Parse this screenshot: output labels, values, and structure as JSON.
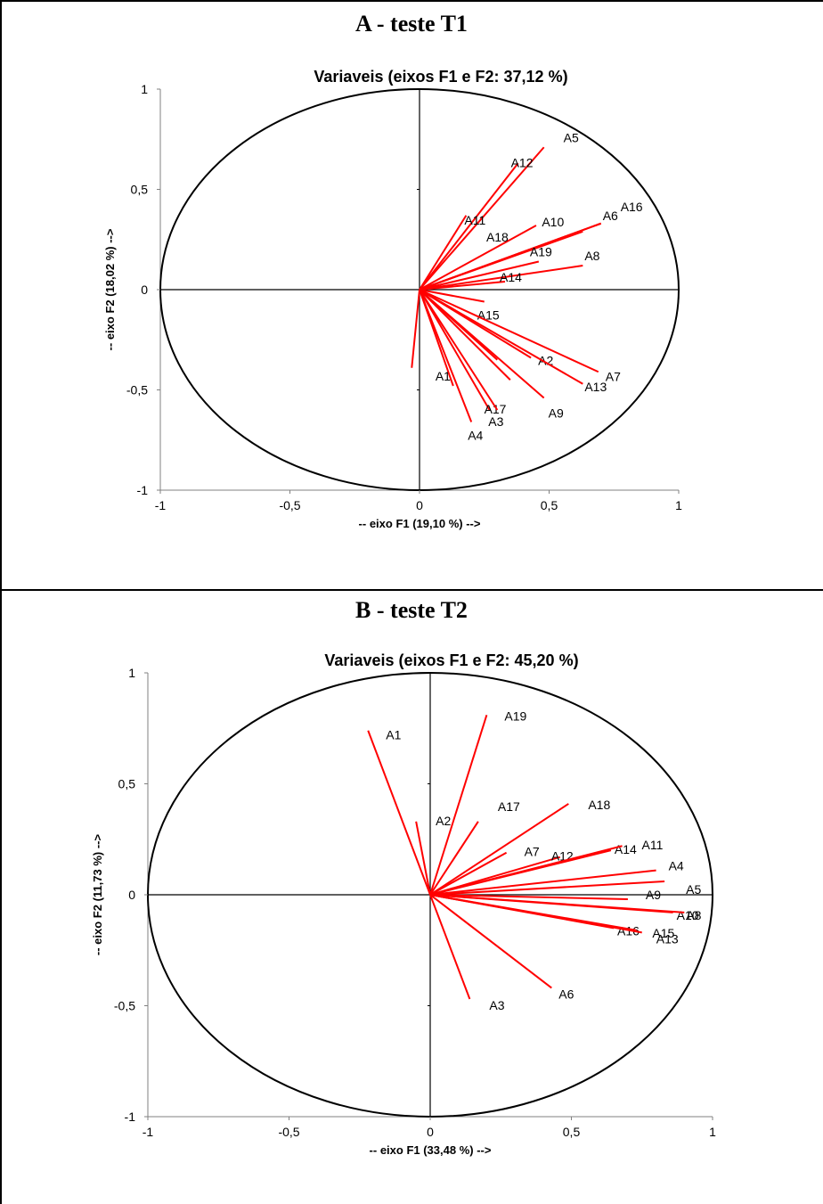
{
  "panels": [
    {
      "heading": "A - teste T1",
      "chart_data": {
        "type": "scatter",
        "title": "Variaveis (eixos F1 e F2: 37,12 %)",
        "xlabel": "-- eixo F1 (19,10 %) -->",
        "ylabel": "-- eixo F2 (18,02 %) -->",
        "xlim": [
          -1,
          1
        ],
        "ylim": [
          -1,
          1
        ],
        "x_ticks": [
          "-1",
          "-0,5",
          "0",
          "0,5",
          "1"
        ],
        "y_ticks": [
          "1",
          "0,5",
          "0",
          "-0,5",
          "-1"
        ],
        "grid": false,
        "legend": "none",
        "line_color": "#ff0000",
        "variables": [
          {
            "label": "A5",
            "x": 0.48,
            "y": 0.71
          },
          {
            "label": "A12",
            "x": 0.38,
            "y": 0.63
          },
          {
            "label": "A11",
            "x": 0.18,
            "y": 0.37
          },
          {
            "label": "A18",
            "x": 0.45,
            "y": 0.32
          },
          {
            "label": "A10",
            "x": 0.63,
            "y": 0.29
          },
          {
            "label": "A6",
            "x": 0.7,
            "y": 0.33
          },
          {
            "label": "A16",
            "x": 0.7,
            "y": 0.33
          },
          {
            "label": "A19",
            "x": 0.46,
            "y": 0.14
          },
          {
            "label": "A8",
            "x": 0.63,
            "y": 0.12
          },
          {
            "label": "A14",
            "x": 0.33,
            "y": 0.04
          },
          {
            "label": "A15",
            "x": 0.25,
            "y": -0.06
          },
          {
            "label": "A2",
            "x": 0.43,
            "y": -0.34
          },
          {
            "label": "A7",
            "x": 0.69,
            "y": -0.41
          },
          {
            "label": "A13",
            "x": 0.63,
            "y": -0.47
          },
          {
            "label": "A1",
            "x": 0.13,
            "y": -0.48
          },
          {
            "label": "A17",
            "x": 0.27,
            "y": -0.6
          },
          {
            "label": "A9",
            "x": 0.48,
            "y": -0.54
          },
          {
            "label": "A3",
            "x": 0.3,
            "y": -0.6
          },
          {
            "label": "A4",
            "x": 0.2,
            "y": -0.66
          },
          {
            "label": "",
            "x": -0.03,
            "y": -0.39
          },
          {
            "label": "",
            "x": 0.3,
            "y": -0.35
          },
          {
            "label": "",
            "x": 0.35,
            "y": -0.45
          }
        ]
      }
    },
    {
      "heading": "B - teste T2",
      "chart_data": {
        "type": "scatter",
        "title": "Variaveis (eixos F1 e F2: 45,20 %)",
        "xlabel": "-- eixo F1 (33,48 %) -->",
        "ylabel": "-- eixo F2 (11,73 %) -->",
        "xlim": [
          -1,
          1
        ],
        "ylim": [
          -1,
          1
        ],
        "x_ticks": [
          "-1",
          "-0,5",
          "0",
          "0,5",
          "1"
        ],
        "y_ticks": [
          "1",
          "0,5",
          "0",
          "-0,5",
          "-1"
        ],
        "grid": false,
        "legend": "none",
        "line_color": "#ff0000",
        "variables": [
          {
            "label": "A1",
            "x": -0.22,
            "y": 0.74
          },
          {
            "label": "A19",
            "x": 0.2,
            "y": 0.81
          },
          {
            "label": "A18",
            "x": 0.49,
            "y": 0.41
          },
          {
            "label": "A2",
            "x": -0.05,
            "y": 0.33
          },
          {
            "label": "A17",
            "x": 0.17,
            "y": 0.33
          },
          {
            "label": "A7",
            "x": 0.27,
            "y": 0.19
          },
          {
            "label": "A12",
            "x": 0.46,
            "y": 0.17
          },
          {
            "label": "A14",
            "x": 0.64,
            "y": 0.2
          },
          {
            "label": "A11",
            "x": 0.68,
            "y": 0.22
          },
          {
            "label": "A4",
            "x": 0.8,
            "y": 0.11
          },
          {
            "label": "A5",
            "x": 0.83,
            "y": 0.06
          },
          {
            "label": "A9",
            "x": 0.7,
            "y": -0.02
          },
          {
            "label": "A10",
            "x": 0.86,
            "y": -0.08
          },
          {
            "label": "A8",
            "x": 0.9,
            "y": -0.08
          },
          {
            "label": "A16",
            "x": 0.65,
            "y": -0.15
          },
          {
            "label": "A15",
            "x": 0.73,
            "y": -0.16
          },
          {
            "label": "A13",
            "x": 0.75,
            "y": -0.17
          },
          {
            "label": "A6",
            "x": 0.43,
            "y": -0.42
          },
          {
            "label": "A3",
            "x": 0.14,
            "y": -0.47
          }
        ]
      }
    }
  ]
}
